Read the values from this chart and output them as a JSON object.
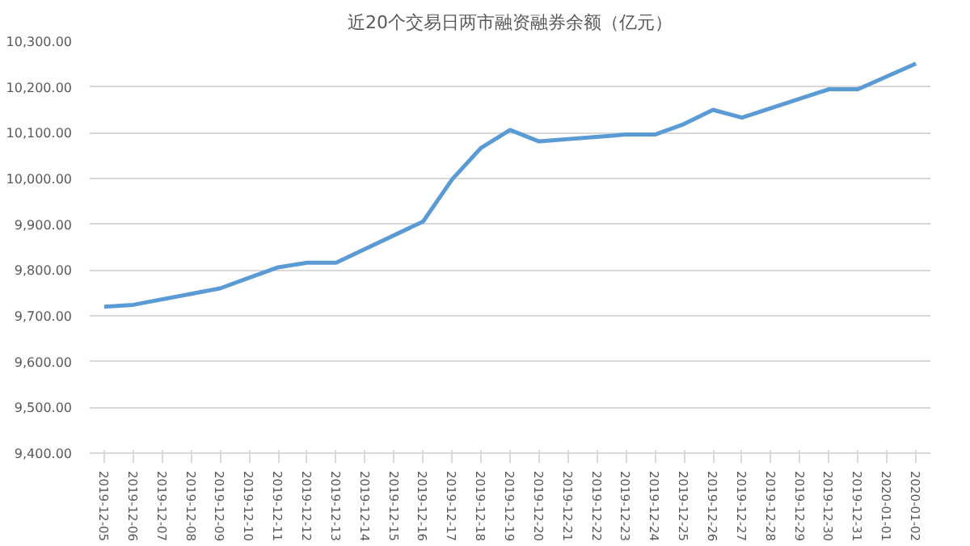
{
  "chart_data": {
    "type": "line",
    "title": "近20个交易日两市融资融券余额（亿元）",
    "series": [
      {
        "color": "#5b9bd5",
        "x": [
          "2019-12-05",
          "2019-12-06",
          "2019-12-09",
          "2019-12-10",
          "2019-12-11",
          "2019-12-12",
          "2019-12-13",
          "2019-12-16",
          "2019-12-17",
          "2019-12-18",
          "2019-12-19",
          "2019-12-20",
          "2019-12-23",
          "2019-12-24",
          "2019-12-25",
          "2019-12-26",
          "2019-12-27",
          "2019-12-30",
          "2019-12-31",
          "2020-01-02"
        ],
        "values": [
          9720,
          9724,
          9760,
          9783,
          9806,
          9816,
          9816,
          9906,
          9998,
          10067,
          10106,
          10081,
          10096,
          10096,
          10119,
          10150,
          10133,
          10195,
          10195,
          10251
        ]
      }
    ],
    "xlim": [
      "2019-12-04T12:00",
      "2020-01-02T12:00"
    ],
    "xticks": [
      "2019-12-05",
      "2019-12-06",
      "2019-12-07",
      "2019-12-08",
      "2019-12-09",
      "2019-12-10",
      "2019-12-11",
      "2019-12-12",
      "2019-12-13",
      "2019-12-14",
      "2019-12-15",
      "2019-12-16",
      "2019-12-17",
      "2019-12-18",
      "2019-12-19",
      "2019-12-20",
      "2019-12-21",
      "2019-12-22",
      "2019-12-23",
      "2019-12-24",
      "2019-12-25",
      "2019-12-26",
      "2019-12-27",
      "2019-12-28",
      "2019-12-29",
      "2019-12-30",
      "2019-12-31",
      "2020-01-01",
      "2020-01-02"
    ],
    "ylim": [
      9400,
      10300
    ],
    "yticks": [
      {
        "value": 9400,
        "label": "9,400.00"
      },
      {
        "value": 9500,
        "label": "9,500.00"
      },
      {
        "value": 9600,
        "label": "9,600.00"
      },
      {
        "value": 9700,
        "label": "9,700.00"
      },
      {
        "value": 9800,
        "label": "9,800.00"
      },
      {
        "value": 9900,
        "label": "9,900.00"
      },
      {
        "value": 10000,
        "label": "10,000.00"
      },
      {
        "value": 10100,
        "label": "10,100.00"
      },
      {
        "value": 10200,
        "label": "10,200.00"
      },
      {
        "value": 10300,
        "label": "10,300.00"
      }
    ],
    "grid": "y",
    "marker": "none",
    "line_style": "solid"
  }
}
